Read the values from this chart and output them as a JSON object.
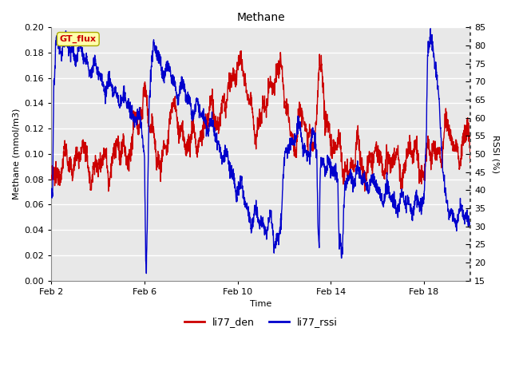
{
  "title": "Methane",
  "xlabel": "Time",
  "ylabel_left": "Methane (mmol/m3)",
  "ylabel_right": "RSSI (%)",
  "ylim_left": [
    0.0,
    0.2
  ],
  "ylim_right": [
    15,
    85
  ],
  "yticks_left": [
    0.0,
    0.02,
    0.04,
    0.06,
    0.08,
    0.1,
    0.12,
    0.14,
    0.16,
    0.18,
    0.2
  ],
  "yticks_right": [
    15,
    20,
    25,
    30,
    35,
    40,
    45,
    50,
    55,
    60,
    65,
    70,
    75,
    80,
    85
  ],
  "xtick_labels": [
    "Feb 2",
    "Feb 6",
    "Feb 10",
    "Feb 14",
    "Feb 18"
  ],
  "xtick_positions": [
    2,
    6,
    10,
    14,
    18
  ],
  "xlim": [
    2,
    20
  ],
  "fig_bg_color": "#ffffff",
  "plot_bg_color": "#e8e8e8",
  "grid_color": "#ffffff",
  "legend_items": [
    "li77_den",
    "li77_rssi"
  ],
  "legend_colors": [
    "#cc0000",
    "#0000cc"
  ],
  "annotation_text": "GT_flux",
  "annotation_bg": "#ffffaa",
  "annotation_border": "#aaaa00",
  "line_width": 1.0,
  "title_fontsize": 10,
  "label_fontsize": 8,
  "tick_fontsize": 8
}
